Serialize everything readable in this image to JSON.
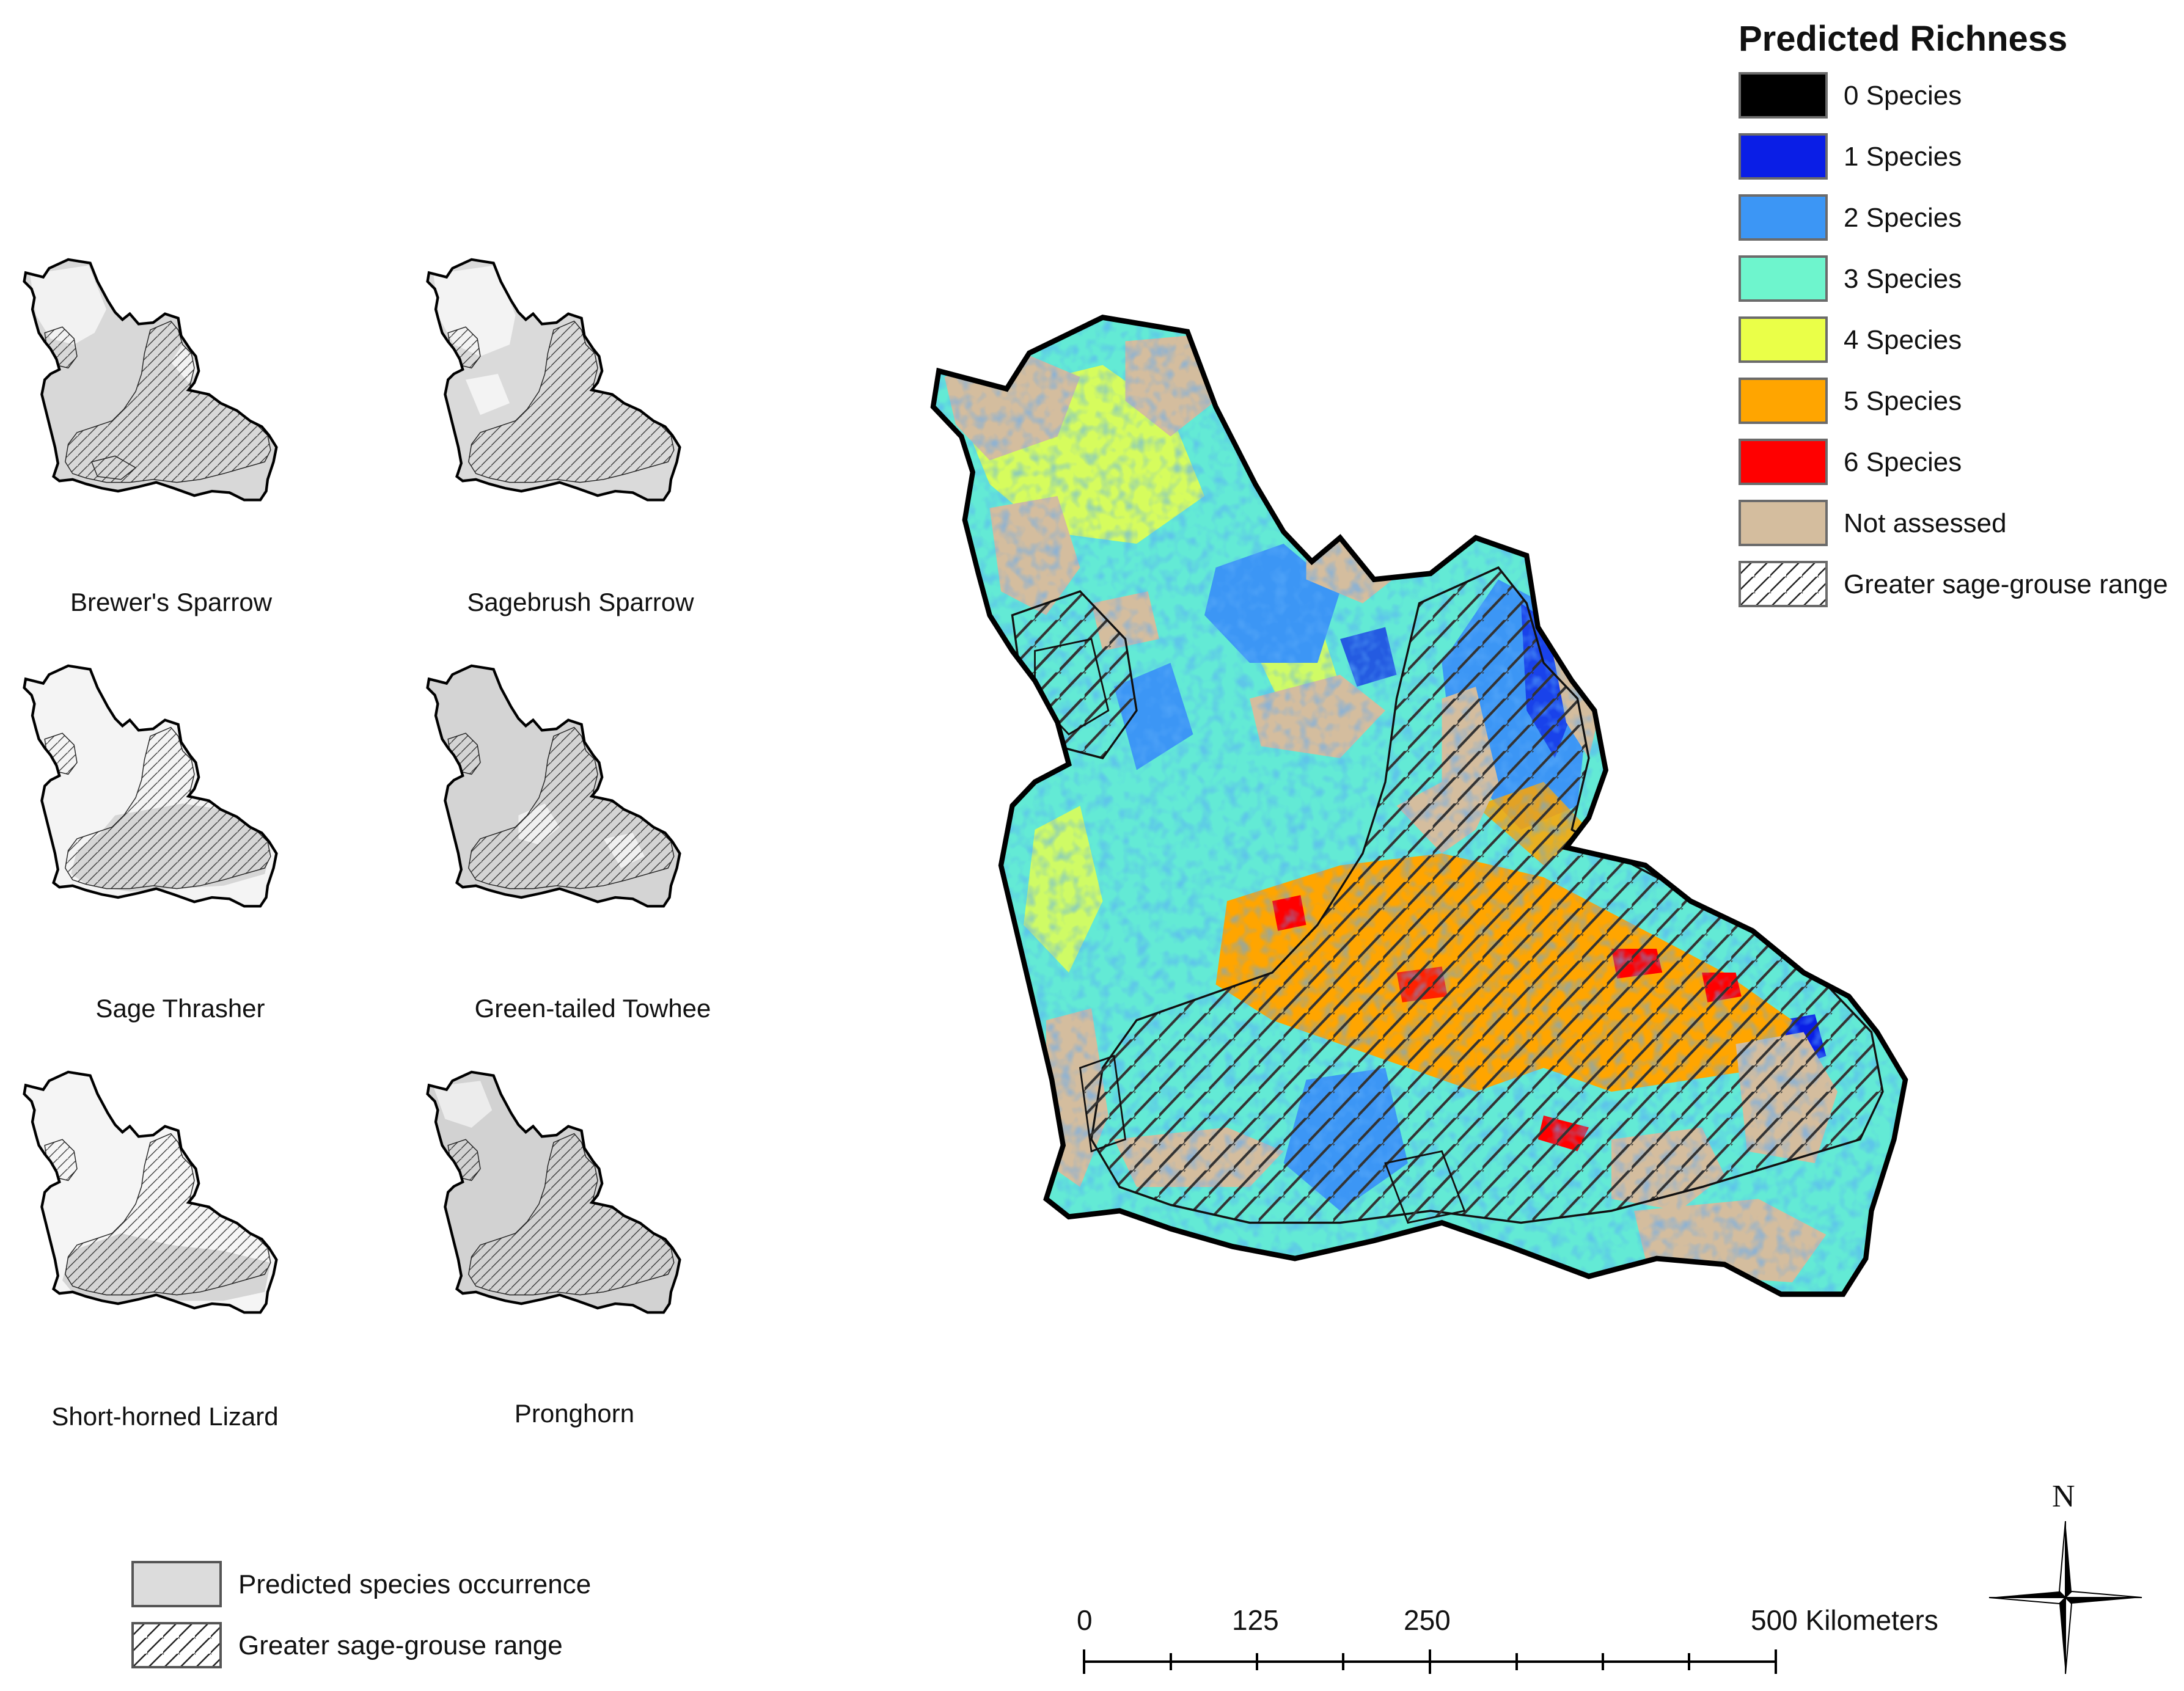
{
  "legend": {
    "title": "Predicted Richness",
    "items": [
      {
        "label": "0 Species",
        "color": "#000000"
      },
      {
        "label": "1 Species",
        "color": "#0a1ee6"
      },
      {
        "label": "2 Species",
        "color": "#3c96f5"
      },
      {
        "label": "3 Species",
        "color": "#6ef5cd"
      },
      {
        "label": "4 Species",
        "color": "#eaff48"
      },
      {
        "label": "5 Species",
        "color": "#ffa500"
      },
      {
        "label": "6 Species",
        "color": "#ff0000"
      },
      {
        "label": "Not assessed",
        "color": "#d4bd9e"
      },
      {
        "label": "Greater sage-grouse range",
        "pattern": "diagonal-hatch"
      }
    ]
  },
  "mini_maps": [
    {
      "label": "Brewer's Sparrow"
    },
    {
      "label": "Sagebrush Sparrow"
    },
    {
      "label": "Sage Thrasher"
    },
    {
      "label": "Green-tailed Towhee"
    },
    {
      "label": "Short-horned Lizard"
    },
    {
      "label": "Pronghorn"
    }
  ],
  "bottom_legend": {
    "items": [
      {
        "label": "Predicted species occurrence",
        "color": "#dcdcdc"
      },
      {
        "label": "Greater sage-grouse range",
        "pattern": "diagonal-hatch"
      }
    ]
  },
  "scale_bar": {
    "ticks": [
      "0",
      "125",
      "250",
      "500 Kilometers"
    ]
  },
  "north_arrow": {
    "label": "N",
    "icon": "compass-rose-icon"
  }
}
